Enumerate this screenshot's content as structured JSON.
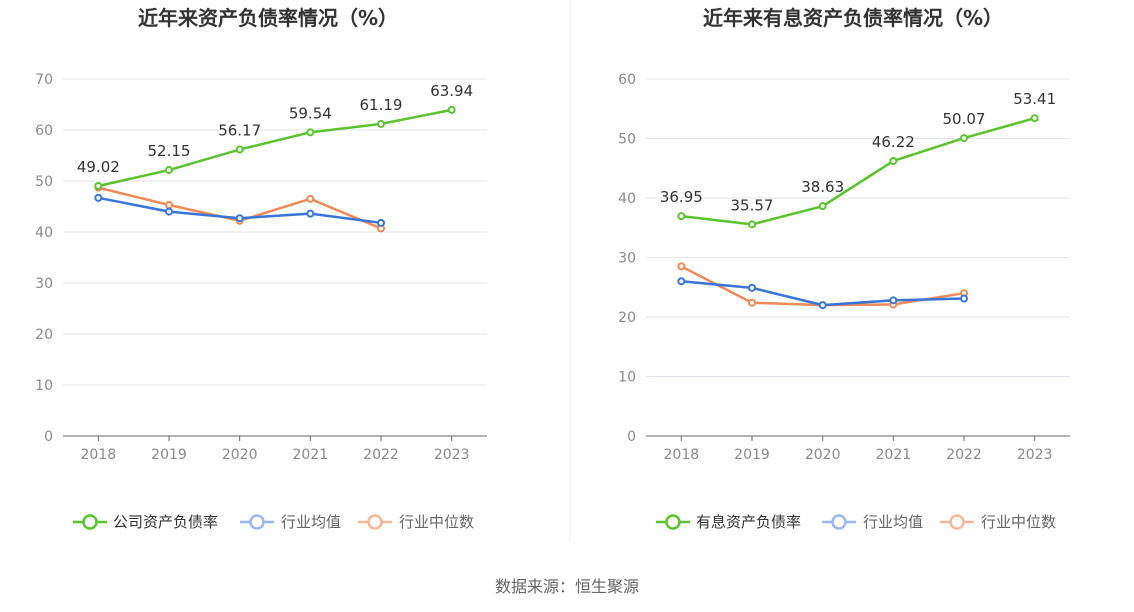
{
  "source": "数据来源：恒生聚源",
  "colors": {
    "green": "#5cc22f",
    "blue": "#3a74d8",
    "orange": "#ee8a5a",
    "blue_legend": "#9bb8ee",
    "orange_legend": "#f6b89a",
    "grid": "#e3e6ee",
    "axis": "#666666"
  },
  "chart_data": [
    {
      "type": "line",
      "title": "近年来资产负债率情况（%）",
      "categories": [
        "2018",
        "2019",
        "2020",
        "2021",
        "2022",
        "2023"
      ],
      "ylim": [
        0,
        70
      ],
      "yticks": [
        "0",
        "10",
        "20",
        "30",
        "40",
        "50",
        "60",
        "70"
      ],
      "grid": true,
      "legend_position": "bottom",
      "series": [
        {
          "name": "公司资产负债率",
          "color": "#5cc22f",
          "values": [
            49.02,
            52.15,
            56.17,
            59.54,
            61.19,
            63.94
          ],
          "labels": [
            "49.02",
            "52.15",
            "56.17",
            "59.54",
            "61.19",
            "63.94"
          ]
        },
        {
          "name": "行业均值",
          "color": "#3a74d8",
          "values": [
            46.7,
            44.0,
            42.7,
            43.6,
            41.8,
            null
          ]
        },
        {
          "name": "行业中位数",
          "color": "#ee8a5a",
          "values": [
            48.7,
            45.3,
            42.2,
            46.5,
            40.7,
            null
          ]
        }
      ]
    },
    {
      "type": "line",
      "title": "近年来有息资产负债率情况（%）",
      "categories": [
        "2018",
        "2019",
        "2020",
        "2021",
        "2022",
        "2023"
      ],
      "ylim": [
        0,
        60
      ],
      "yticks": [
        "0",
        "10",
        "20",
        "30",
        "40",
        "50",
        "60"
      ],
      "grid": true,
      "legend_position": "bottom",
      "series": [
        {
          "name": "有息资产负债率",
          "color": "#5cc22f",
          "values": [
            36.95,
            35.57,
            38.63,
            46.22,
            50.07,
            53.41
          ],
          "labels": [
            "36.95",
            "35.57",
            "38.63",
            "46.22",
            "50.07",
            "53.41"
          ]
        },
        {
          "name": "行业均值",
          "color": "#3a74d8",
          "values": [
            26.0,
            24.9,
            22.0,
            22.8,
            23.1,
            null
          ]
        },
        {
          "name": "行业中位数",
          "color": "#ee8a5a",
          "values": [
            28.5,
            22.4,
            22.0,
            22.1,
            24.0,
            null
          ]
        }
      ]
    }
  ]
}
